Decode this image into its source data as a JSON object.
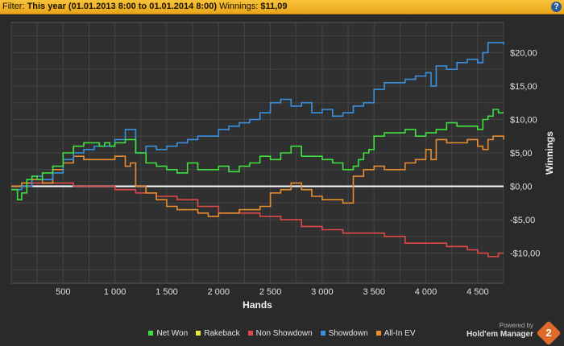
{
  "filter_bar": {
    "label": "Filter:",
    "value": "This year (01.01.2013 8:00 to 01.01.2014 8:00)",
    "winnings_label": "Winnings:",
    "winnings_value": "$11,09",
    "help_label": "?"
  },
  "branding": {
    "powered_by": "Powered by",
    "product": "Hold'em Manager",
    "logo_number": "2"
  },
  "legend": [
    {
      "name": "Net Won",
      "color": "#3fe03f"
    },
    {
      "name": "Rakeback",
      "color": "#e8e83a"
    },
    {
      "name": "Non Showdown",
      "color": "#e04848"
    },
    {
      "name": "Showdown",
      "color": "#3a8fe0"
    },
    {
      "name": "All-In EV",
      "color": "#e88c30"
    }
  ],
  "chart_data": {
    "type": "line",
    "xlabel": "Hands",
    "ylabel": "Winnings",
    "xlim": [
      0,
      4750
    ],
    "ylim": [
      -14.5,
      24.5
    ],
    "x_ticks": [
      500,
      1000,
      1500,
      2000,
      2500,
      3000,
      3500,
      4000,
      4500
    ],
    "x_tick_labels": [
      "500",
      "1 000",
      "1 500",
      "2 000",
      "2 500",
      "3 000",
      "3 500",
      "4 000",
      "4 500"
    ],
    "y_ticks": [
      20,
      15,
      10,
      5,
      0,
      -5,
      -10
    ],
    "y_tick_labels": [
      "$20,00",
      "$15,00",
      "$10,00",
      "$5,00",
      "$0,00",
      "-$5,00",
      "-$10,00"
    ],
    "grid": true,
    "series": [
      {
        "name": "Net Won",
        "color": "#3fe03f",
        "x": [
          0,
          60,
          100,
          150,
          200,
          250,
          300,
          400,
          500,
          600,
          700,
          800,
          850,
          900,
          950,
          1000,
          1100,
          1150,
          1200,
          1250,
          1300,
          1400,
          1500,
          1600,
          1700,
          1800,
          1900,
          2000,
          2100,
          2200,
          2300,
          2400,
          2500,
          2600,
          2700,
          2800,
          2900,
          3000,
          3100,
          3200,
          3300,
          3350,
          3400,
          3450,
          3500,
          3600,
          3700,
          3800,
          3900,
          4000,
          4050,
          4100,
          4200,
          4300,
          4400,
          4500,
          4550,
          4600,
          4650,
          4700,
          4750
        ],
        "y": [
          -0.5,
          -2,
          -1,
          1,
          1.5,
          1,
          2,
          3,
          5,
          6,
          6.5,
          6.5,
          6,
          6.5,
          6,
          6.5,
          7,
          7,
          5,
          5,
          3.5,
          3,
          2.5,
          2,
          3.5,
          2.5,
          2.5,
          3,
          2.2,
          3,
          3.5,
          4.5,
          4,
          5,
          6,
          4.5,
          4.5,
          4,
          3.5,
          2.5,
          3,
          4,
          5,
          5.5,
          7.5,
          8,
          8,
          8.5,
          7.5,
          8,
          8,
          8.5,
          9.5,
          9,
          9,
          8.5,
          10,
          10.5,
          11.5,
          11,
          11
        ]
      },
      {
        "name": "Rakeback",
        "color": "#e8e83a",
        "x": [
          0,
          4750
        ],
        "y": [
          0,
          0
        ]
      },
      {
        "name": "Non Showdown",
        "color": "#e04848",
        "x": [
          0,
          200,
          400,
          600,
          800,
          1000,
          1200,
          1400,
          1600,
          1800,
          2000,
          2200,
          2400,
          2600,
          2800,
          3000,
          3200,
          3400,
          3600,
          3800,
          4000,
          4200,
          4400,
          4500,
          4600,
          4700,
          4750
        ],
        "y": [
          0,
          0.5,
          0.5,
          0,
          0,
          -0.5,
          -1,
          -1.5,
          -2,
          -3,
          -4,
          -4,
          -4.5,
          -5,
          -6,
          -6.5,
          -7,
          -7,
          -7.5,
          -8.5,
          -8.5,
          -9,
          -9.5,
          -10,
          -10.5,
          -10,
          -10
        ]
      },
      {
        "name": "Showdown",
        "color": "#3a8fe0",
        "x": [
          0,
          100,
          200,
          300,
          400,
          500,
          600,
          700,
          800,
          900,
          1000,
          1100,
          1150,
          1200,
          1300,
          1400,
          1500,
          1600,
          1700,
          1800,
          1900,
          2000,
          2100,
          2200,
          2300,
          2400,
          2500,
          2600,
          2700,
          2800,
          2900,
          3000,
          3100,
          3200,
          3300,
          3400,
          3500,
          3600,
          3700,
          3800,
          3900,
          4000,
          4050,
          4100,
          4200,
          4300,
          4400,
          4500,
          4550,
          4600,
          4650,
          4750
        ],
        "y": [
          -0.5,
          0,
          1.5,
          1,
          2,
          4,
          5,
          5.5,
          6,
          6,
          7,
          8.5,
          8.5,
          5,
          6,
          5.5,
          6,
          6.5,
          7,
          7.5,
          7.5,
          8.5,
          9,
          9.5,
          10,
          11,
          12.5,
          13,
          12,
          12.5,
          11,
          11.5,
          10.5,
          11,
          12,
          12.5,
          14.5,
          15.5,
          15.5,
          16,
          16.5,
          17,
          15,
          18,
          17.5,
          18.5,
          19,
          18.5,
          20,
          21.5,
          21.5,
          21.2
        ]
      },
      {
        "name": "All-In EV",
        "color": "#e88c30",
        "x": [
          0,
          100,
          200,
          300,
          400,
          500,
          600,
          700,
          800,
          900,
          1000,
          1100,
          1150,
          1200,
          1300,
          1400,
          1500,
          1600,
          1700,
          1800,
          1900,
          2000,
          2100,
          2200,
          2300,
          2400,
          2500,
          2600,
          2700,
          2800,
          2900,
          3000,
          3100,
          3200,
          3300,
          3400,
          3500,
          3600,
          3700,
          3800,
          3900,
          4000,
          4050,
          4100,
          4200,
          4300,
          4400,
          4500,
          4550,
          4600,
          4650,
          4750
        ],
        "y": [
          0,
          0.5,
          1,
          0.5,
          2.5,
          3.5,
          4.5,
          4,
          4,
          4,
          4.5,
          3,
          3.5,
          0,
          -1,
          -2,
          -3,
          -3.5,
          -3.5,
          -4,
          -4.5,
          -4,
          -4,
          -3.5,
          -3.5,
          -3,
          -1,
          -0.5,
          0.5,
          -0.5,
          -1.5,
          -2,
          -2,
          -2.5,
          1.5,
          2.5,
          3,
          2.5,
          2.5,
          3.5,
          4,
          5.5,
          4,
          7,
          6.5,
          6.5,
          7,
          6,
          5.5,
          7,
          7.5,
          7
        ]
      }
    ]
  }
}
